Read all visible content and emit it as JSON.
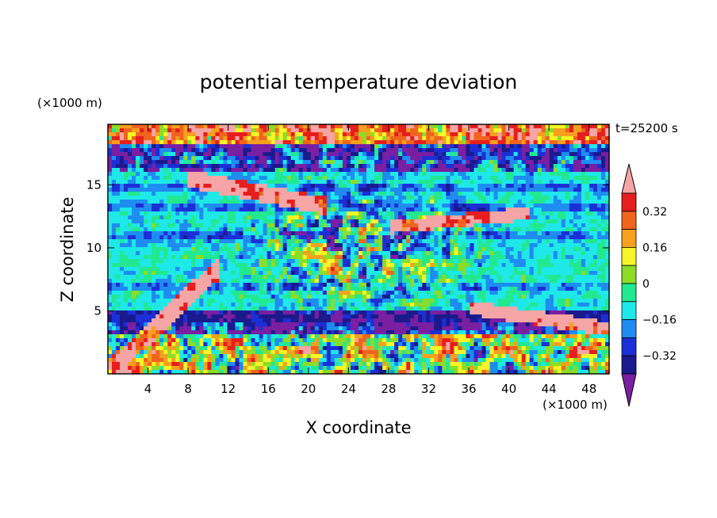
{
  "chart_data": {
    "type": "heatmap",
    "title": "potential temperature deviation",
    "xlabel": "X coordinate",
    "ylabel": "Z coordinate",
    "x_unit": "(×1000 m)",
    "y_unit": "(×1000 m)",
    "time_label": "t=25200 s",
    "xlim": [
      0,
      50
    ],
    "ylim": [
      0,
      19.8
    ],
    "x_ticks": [
      4,
      8,
      12,
      16,
      20,
      24,
      28,
      32,
      36,
      40,
      44,
      48
    ],
    "y_ticks": [
      5,
      10,
      15
    ],
    "grid": false,
    "colorbar": {
      "levels": [
        -0.4,
        -0.32,
        -0.24,
        -0.16,
        -0.08,
        0,
        0.08,
        0.16,
        0.24,
        0.32,
        0.4
      ],
      "tick_labels": [
        "0.32",
        "0.16",
        "0",
        "−0.16",
        "−0.32"
      ],
      "tick_values": [
        0.32,
        0.16,
        0,
        -0.16,
        -0.32
      ],
      "colors": [
        "#7a1fa2",
        "#1a1a8c",
        "#1c2fd6",
        "#1f8cf0",
        "#1fe8e8",
        "#22e890",
        "#8cdc28",
        "#f5f528",
        "#f5a01e",
        "#f0641e",
        "#e61e1e",
        "#f5a5a5"
      ],
      "extend": "both"
    }
  }
}
